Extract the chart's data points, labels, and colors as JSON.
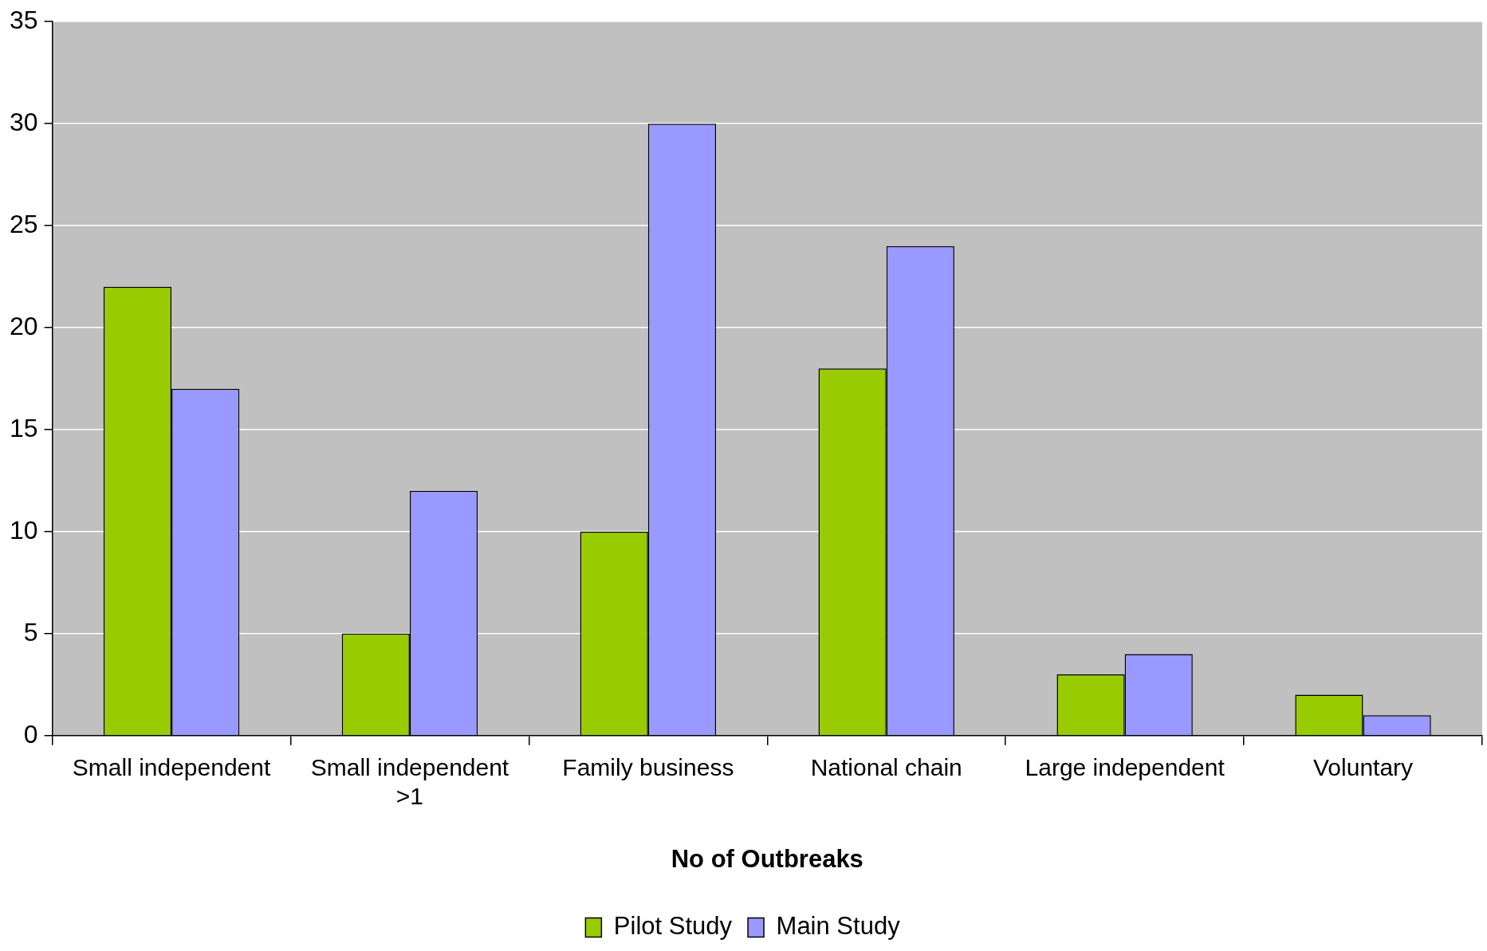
{
  "chart_data": {
    "type": "bar",
    "xlabel": "No of Outbreaks",
    "categories": [
      "Small independent",
      "Small independent >1",
      "Family business",
      "National chain",
      "Large independent",
      "Voluntary"
    ],
    "series": [
      {
        "name": "Pilot Study",
        "color": "#99cc00",
        "values": [
          22,
          5,
          10,
          18,
          3,
          2
        ]
      },
      {
        "name": "Main Study",
        "color": "#9999ff",
        "values": [
          17,
          12,
          30,
          24,
          4,
          1
        ]
      }
    ],
    "ylim": [
      0,
      35
    ],
    "yticks": [
      0,
      5,
      10,
      15,
      20,
      25,
      30,
      35
    ],
    "grid": "y",
    "legend": "bottom"
  }
}
